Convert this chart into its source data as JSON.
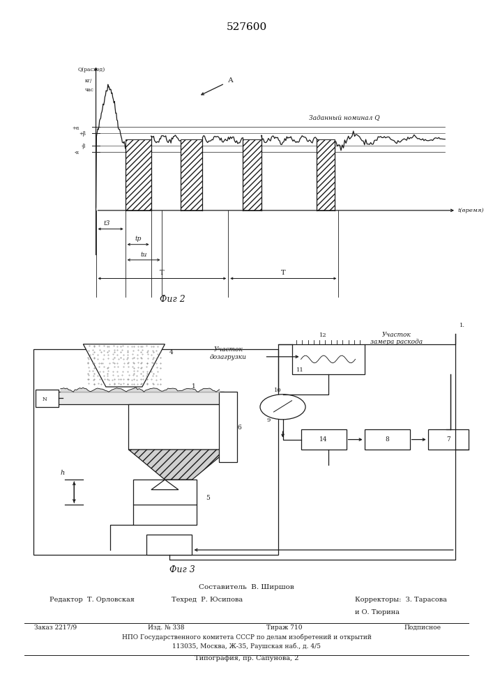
{
  "title": "527600",
  "fig2_label": "Фиг 2",
  "fig3_label": "Фиг 3",
  "y_axis_label": "Q(расход)",
  "y_axis_label2": "кг/",
  "y_axis_label3": "час",
  "x_axis_label": "t(время)",
  "nominal_label": "Заданный номинал Q",
  "point_A_label": "А",
  "t3_label": "t3",
  "tp_label": "tp",
  "tu_label": "tu",
  "T_label": "T",
  "plus_alpha": "+α",
  "minus_alpha": "-α",
  "plus_beta": "+β",
  "minus_beta": "-β",
  "участок_дозагрузки": "Участок\nдозагрузки",
  "участок_замера": "Участок\nзамера раскода",
  "footer_line1": "Составитель  В. Ширшов",
  "footer_line2_left": "Редактор  Т. Орловская",
  "footer_line2_mid": "Техред  Р. Юсипова",
  "footer_line2_right": "Корректоры:  З. Тарасова",
  "footer_line2_right2": "и О. Тюрина",
  "footer_line3_1": "Заказ 2217/9",
  "footer_line3_2": "Изд. № 338",
  "footer_line3_3": "Тираж 710",
  "footer_line3_4": "Подписное",
  "footer_line4": "НПО Государственного комитета СССР по делам изобретений и открытий",
  "footer_line5": "113035, Москва, Ж-35, Раушская наб., д. 4/5",
  "footer_line6": "Типография, пр. Сапунова, 2",
  "line_color": "#1a1a1a"
}
